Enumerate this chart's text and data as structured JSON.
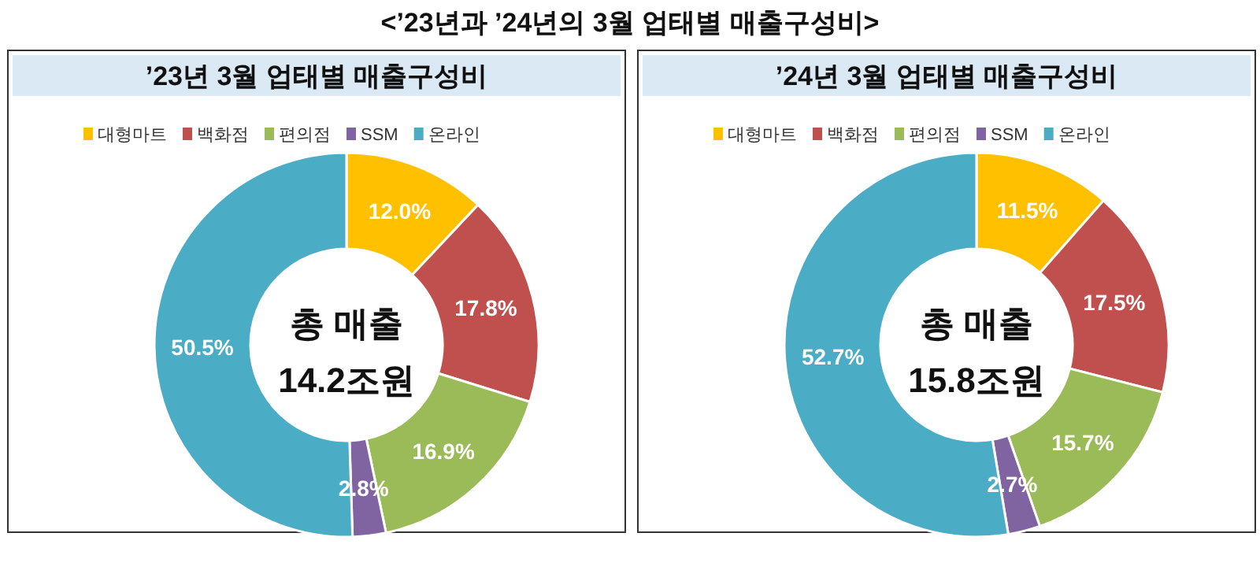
{
  "chart_data": [
    {
      "type": "donut",
      "title": "’23년 3월 업태별 매출구성비",
      "categories": [
        "대형마트",
        "백화점",
        "편의점",
        "SSM",
        "온라인"
      ],
      "values": [
        12.0,
        17.8,
        16.9,
        2.8,
        50.5
      ],
      "colors": [
        "#ffc000",
        "#c0504d",
        "#9bbb59",
        "#8064a2",
        "#4bacc6"
      ],
      "value_labels": [
        "12.0%",
        "17.8%",
        "16.9%",
        "2.8%",
        "50.5%"
      ],
      "legend": "top",
      "annotations": [
        "<’23년과 ’24년의 3월 업태별 매출구성비>",
        "총 매출",
        "14.2조원"
      ]
    },
    {
      "type": "donut",
      "title": "’24년 3월 업태별 매출구성비",
      "categories": [
        "대형마트",
        "백화점",
        "편의점",
        "SSM",
        "온라인"
      ],
      "values": [
        11.5,
        17.5,
        15.7,
        2.7,
        52.7
      ],
      "colors": [
        "#ffc000",
        "#c0504d",
        "#9bbb59",
        "#8064a2",
        "#4bacc6"
      ],
      "value_labels": [
        "11.5%",
        "17.5%",
        "15.7%",
        "2.7%",
        "52.7%"
      ],
      "legend": "top",
      "annotations": [
        "총 매출",
        "15.8조원"
      ]
    }
  ]
}
